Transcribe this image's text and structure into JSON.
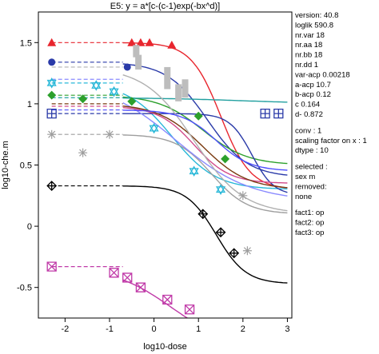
{
  "chart_data": {
    "type": "line",
    "title": "E5: y = a*[c-(c-1)exp(-bx^d)]",
    "xlabel": "log10-dose",
    "ylabel": "log10-che.m",
    "xlim": [
      -2.6,
      3.1
    ],
    "ylim": [
      -0.75,
      1.75
    ],
    "x_ticks": [
      -2,
      -1,
      0,
      1,
      2,
      3
    ],
    "y_ticks": [
      -0.5,
      0,
      0.5,
      1,
      1.5
    ],
    "grid": false,
    "series": [
      {
        "color": "#e8262e",
        "marker": "triangle",
        "dashed_until": -0.7,
        "x": [
          -2.3,
          -0.5,
          -0.3,
          -0.1,
          0.4
        ],
        "y": [
          1.5,
          1.5,
          1.5,
          1.5,
          1.48
        ]
      },
      {
        "color": "#2a3aa8",
        "marker": "circle",
        "dashed_until": -0.7,
        "x": [
          -2.3,
          -0.6
        ],
        "y": [
          1.34,
          1.3
        ]
      },
      {
        "color": "#29b8d8",
        "marker": "star",
        "dashed_until": -0.7,
        "x": [
          -2.3,
          -1.3,
          -0.9,
          0.0,
          0.9,
          1.5
        ],
        "y": [
          1.17,
          1.15,
          1.1,
          0.8,
          0.45,
          0.3
        ]
      },
      {
        "color": "#000000",
        "marker": "diamond-plus",
        "dashed_until": -0.7,
        "x": [
          -2.3,
          1.1,
          1.5,
          1.8
        ],
        "y": [
          0.33,
          0.1,
          -0.05,
          -0.22
        ]
      },
      {
        "color": "#c03aa8",
        "marker": "box-x",
        "dashed_until": -0.7,
        "x": [
          -2.3,
          -0.9,
          -0.6,
          -0.3,
          0.3,
          0.8
        ],
        "y": [
          -0.33,
          -0.38,
          -0.42,
          -0.5,
          -0.6,
          -0.68
        ]
      },
      {
        "color": "#9e9e9e",
        "marker": "asterisk",
        "dashed_until": -0.7,
        "x": [
          -2.3,
          -1.6,
          -1.0,
          2.0,
          2.1
        ],
        "y": [
          0.75,
          0.6,
          0.75,
          0.25,
          -0.2
        ]
      },
      {
        "color": "#2ca02c",
        "marker": "diamond-filled",
        "dashed_until": -0.7,
        "x": [
          -2.3,
          -1.6,
          -0.5,
          1.0,
          1.6
        ],
        "y": [
          1.07,
          1.04,
          1.02,
          0.9,
          0.55
        ]
      },
      {
        "color": "#2a3aa8",
        "marker": "box-plus",
        "dashed_until": -0.7,
        "x": [
          -2.3,
          2.5,
          2.8
        ],
        "y": [
          0.92,
          0.92,
          0.92
        ]
      }
    ]
  },
  "side_panel": {
    "lines": [
      "version: 40.8",
      "loglik   590.8",
      "nr.var     18",
      "nr.aa     18",
      "nr.bb     18",
      "nr.dd     1",
      "var-acp   0.00218",
      "a-acp    10.7",
      "b-acp    0.12",
      "c    0.164",
      "d-    0.872",
      "",
      "conv :    1",
      "scaling factor on x :  1",
      "dtype :   10",
      "",
      "selected :",
      "    sex m",
      "removed:",
      "    none",
      "",
      "fact1:   op",
      "fact2:   op",
      "fact3:   op"
    ]
  }
}
